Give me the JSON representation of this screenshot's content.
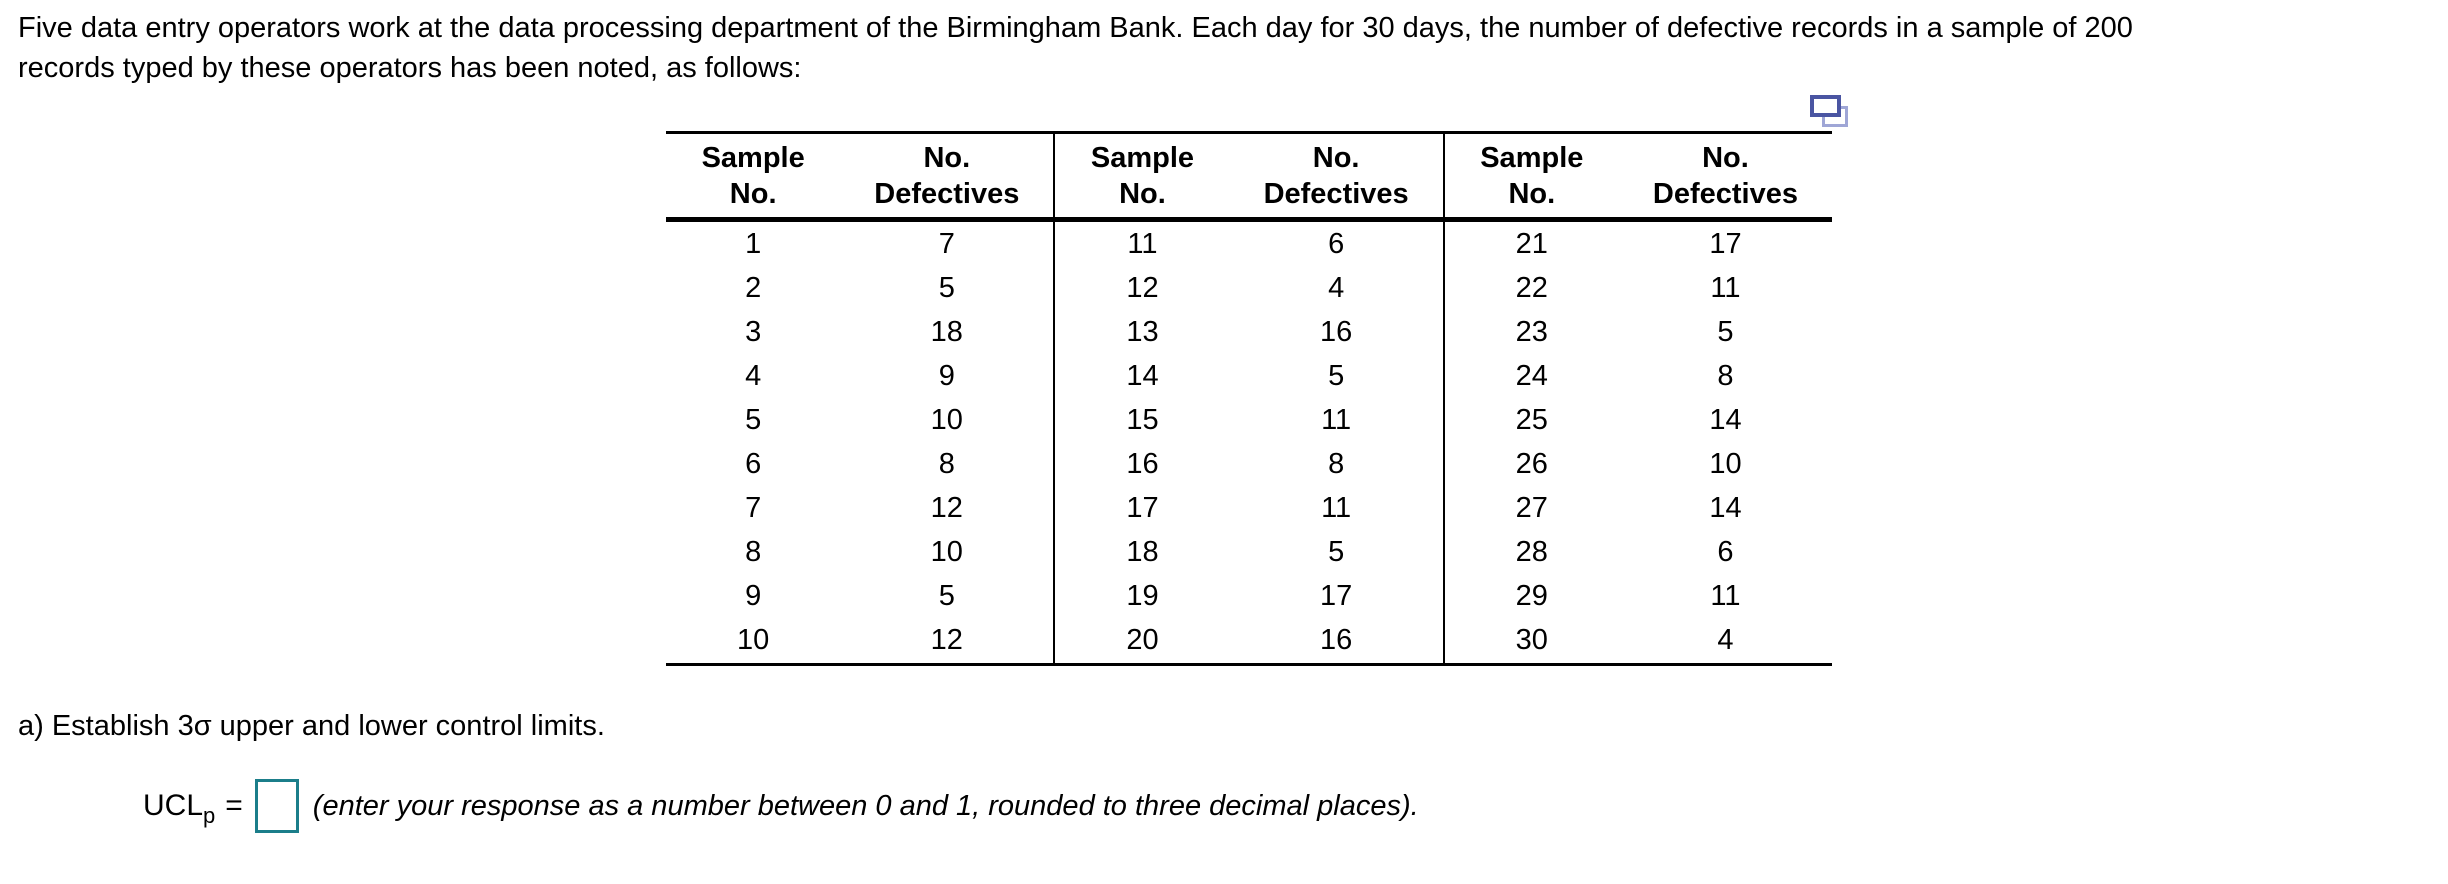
{
  "intro": {
    "line1": "Five data entry operators work at the data processing department of the Birmingham Bank. Each day for 30 days, the number of defective records in a sample of 200",
    "line2": "records typed by these operators has been noted, as follows:"
  },
  "icons": {
    "copy_icon": "copy-table-icon"
  },
  "table": {
    "headers": [
      {
        "line1": "Sample",
        "line2": "No."
      },
      {
        "line1": "No.",
        "line2": "Defectives"
      }
    ],
    "rows": [
      [
        "1",
        "7",
        "11",
        "6",
        "21",
        "17"
      ],
      [
        "2",
        "5",
        "12",
        "4",
        "22",
        "11"
      ],
      [
        "3",
        "18",
        "13",
        "16",
        "23",
        "5"
      ],
      [
        "4",
        "9",
        "14",
        "5",
        "24",
        "8"
      ],
      [
        "5",
        "10",
        "15",
        "11",
        "25",
        "14"
      ],
      [
        "6",
        "8",
        "16",
        "8",
        "26",
        "10"
      ],
      [
        "7",
        "12",
        "17",
        "11",
        "27",
        "14"
      ],
      [
        "8",
        "10",
        "18",
        "5",
        "28",
        "6"
      ],
      [
        "9",
        "5",
        "19",
        "17",
        "29",
        "11"
      ],
      [
        "10",
        "12",
        "20",
        "16",
        "30",
        "4"
      ]
    ]
  },
  "question": {
    "part_a": "a) Establish 3σ upper and lower control limits.",
    "ucl_label": "UCL",
    "ucl_sub": "p",
    "equals": "=",
    "answer_value": "",
    "hint": "(enter your response as a number between 0 and 1, rounded to three decimal places)."
  },
  "colors": {
    "input_border": "#1b7e8a",
    "icon_front": "#4a55a2",
    "icon_back": "#9fa6d6",
    "text": "#000000",
    "background": "#ffffff"
  }
}
